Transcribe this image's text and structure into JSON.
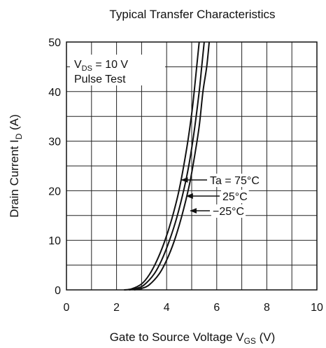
{
  "chart_data": {
    "type": "line",
    "title": "Typical Transfer Characteristics",
    "xlabel": {
      "main": "Gate to Source Voltage  V",
      "sub": "GS",
      "unit": "  (V)"
    },
    "ylabel": {
      "main": "Drain Current  I",
      "sub": "D",
      "unit": "  (A)"
    },
    "xlim": [
      0,
      10
    ],
    "ylim": [
      0,
      50
    ],
    "xticks": [
      "0",
      "2",
      "4",
      "6",
      "8",
      "10"
    ],
    "yticks": [
      "0",
      "10",
      "20",
      "30",
      "40",
      "50"
    ],
    "x_grid_step": 1,
    "y_grid_step": 5,
    "grid": true,
    "conditions": {
      "line1": {
        "main": "V",
        "sub": "DS",
        "rest": " = 10 V"
      },
      "line2": "Pulse Test"
    },
    "series": [
      {
        "name": "Ta = 75°C",
        "points": [
          [
            2.3,
            0
          ],
          [
            2.6,
            0.2
          ],
          [
            3.0,
            1.2
          ],
          [
            3.3,
            3.0
          ],
          [
            3.6,
            5.8
          ],
          [
            3.9,
            9.5
          ],
          [
            4.2,
            14.2
          ],
          [
            4.5,
            20.2
          ],
          [
            4.8,
            28.5
          ],
          [
            5.0,
            35.5
          ],
          [
            5.1,
            40.0
          ],
          [
            5.2,
            45.0
          ],
          [
            5.3,
            50.0
          ]
        ]
      },
      {
        "name": "25°C",
        "points": [
          [
            2.5,
            0
          ],
          [
            2.8,
            0.3
          ],
          [
            3.1,
            1.0
          ],
          [
            3.5,
            3.2
          ],
          [
            3.8,
            6.0
          ],
          [
            4.1,
            9.8
          ],
          [
            4.4,
            14.5
          ],
          [
            4.7,
            20.5
          ],
          [
            4.9,
            25.5
          ],
          [
            5.1,
            32.0
          ],
          [
            5.3,
            40.0
          ],
          [
            5.4,
            45.0
          ],
          [
            5.5,
            50.0
          ]
        ]
      },
      {
        "name": "-25°C",
        "points": [
          [
            2.7,
            0
          ],
          [
            3.0,
            0.3
          ],
          [
            3.3,
            1.0
          ],
          [
            3.7,
            3.2
          ],
          [
            4.0,
            6.0
          ],
          [
            4.3,
            9.8
          ],
          [
            4.6,
            14.8
          ],
          [
            4.9,
            21.0
          ],
          [
            5.1,
            26.5
          ],
          [
            5.3,
            33.0
          ],
          [
            5.45,
            40.0
          ],
          [
            5.6,
            45.0
          ],
          [
            5.7,
            50.0
          ]
        ]
      }
    ],
    "annotations": [
      {
        "text": "Ta = 75°C",
        "arrow_to": [
          4.6,
          21.8
        ]
      },
      {
        "text": "25°C",
        "arrow_to": [
          4.8,
          19.0
        ]
      },
      {
        "text": "−25°C",
        "arrow_to": [
          4.95,
          16.5
        ]
      }
    ],
    "colors": {
      "line": "#111111",
      "grid": "#222222",
      "background": "#ffffff"
    }
  }
}
